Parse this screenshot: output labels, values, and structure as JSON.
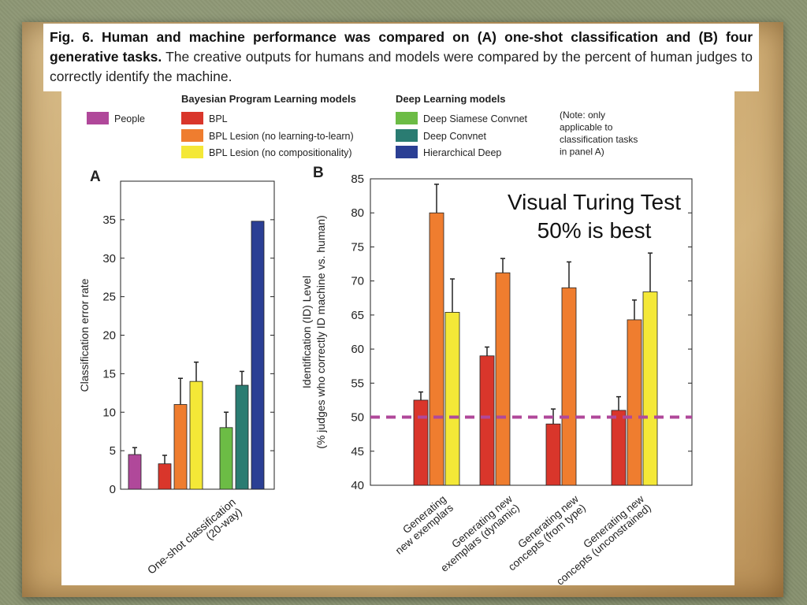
{
  "caption": {
    "fig_label": "Fig. 6.",
    "bold_text": "Human and machine performance was compared on (A) one-shot classification and (B) four generative tasks.",
    "normal_text": "The creative outputs for humans and models were compared by the percent of human judges to correctly identify the machine."
  },
  "legend": {
    "group_bpl": "Bayesian Program Learning models",
    "group_dl": "Deep Learning models",
    "note": [
      "(Note: only",
      "applicable to",
      "classification tasks",
      "in panel A)"
    ],
    "entries": [
      {
        "key": "people",
        "label": "People",
        "color": "#b0489a"
      },
      {
        "key": "bpl",
        "label": "BPL",
        "color": "#d9362b"
      },
      {
        "key": "bpl_lesion_ll",
        "label": "BPL Lesion (no learning-to-learn)",
        "color": "#ef7d2f"
      },
      {
        "key": "bpl_lesion_comp",
        "label": "BPL Lesion (no compositionality)",
        "color": "#f4e837"
      },
      {
        "key": "siamese",
        "label": "Deep Siamese Convnet",
        "color": "#6cbc45"
      },
      {
        "key": "convnet",
        "label": "Deep Convnet",
        "color": "#2a7c72"
      },
      {
        "key": "hier",
        "label": "Hierarchical Deep",
        "color": "#2b3f94"
      }
    ]
  },
  "chart_data": [
    {
      "type": "bar",
      "panel": "A",
      "ylabel": "Classification error rate",
      "ylim": [
        0,
        40
      ],
      "yticks": [
        0,
        5,
        10,
        15,
        20,
        25,
        30,
        35
      ],
      "categories": [
        "One-shot classification\n(20-way)"
      ],
      "series": [
        {
          "name": "People",
          "values": [
            4.5
          ],
          "err": [
            0.9
          ]
        },
        {
          "name": "BPL",
          "values": [
            3.3
          ],
          "err": [
            1.1
          ]
        },
        {
          "name": "BPL Lesion (no learning-to-learn)",
          "values": [
            11.0
          ],
          "err": [
            3.4
          ]
        },
        {
          "name": "BPL Lesion (no compositionality)",
          "values": [
            14.0
          ],
          "err": [
            2.5
          ]
        },
        {
          "name": "Deep Siamese Convnet",
          "values": [
            8.0
          ],
          "err": [
            2.0
          ]
        },
        {
          "name": "Deep Convnet",
          "values": [
            13.5
          ],
          "err": [
            1.8
          ]
        },
        {
          "name": "Hierarchical Deep",
          "values": [
            34.8
          ],
          "err": [
            0
          ]
        }
      ]
    },
    {
      "type": "bar",
      "panel": "B",
      "ylabel": [
        "Identification (ID) Level",
        "(% judges who correctly ID machine vs. human)"
      ],
      "ylim": [
        40,
        85
      ],
      "yticks": [
        40,
        45,
        50,
        55,
        60,
        65,
        70,
        75,
        80,
        85
      ],
      "reference_line": 50,
      "annotation": [
        "Visual Turing Test",
        "50% is best"
      ],
      "categories": [
        [
          "Generating",
          "new exemplars"
        ],
        [
          "Generating new",
          "exemplars (dynamic)"
        ],
        [
          "Generating new",
          "concepts (from type)"
        ],
        [
          "Generating new",
          "concepts (unconstrained)"
        ]
      ],
      "series": [
        {
          "name": "BPL",
          "values": [
            52.5,
            59.0,
            49.0,
            51.0
          ],
          "err": [
            1.2,
            1.3,
            2.2,
            2.0
          ]
        },
        {
          "name": "BPL Lesion (no learning-to-learn)",
          "values": [
            80.0,
            71.2,
            69.0,
            64.3
          ],
          "err": [
            4.2,
            2.1,
            3.8,
            2.9
          ]
        },
        {
          "name": "BPL Lesion (no compositionality)",
          "values": [
            65.4,
            null,
            null,
            68.4
          ],
          "err": [
            4.9,
            null,
            null,
            5.7
          ]
        }
      ]
    }
  ]
}
